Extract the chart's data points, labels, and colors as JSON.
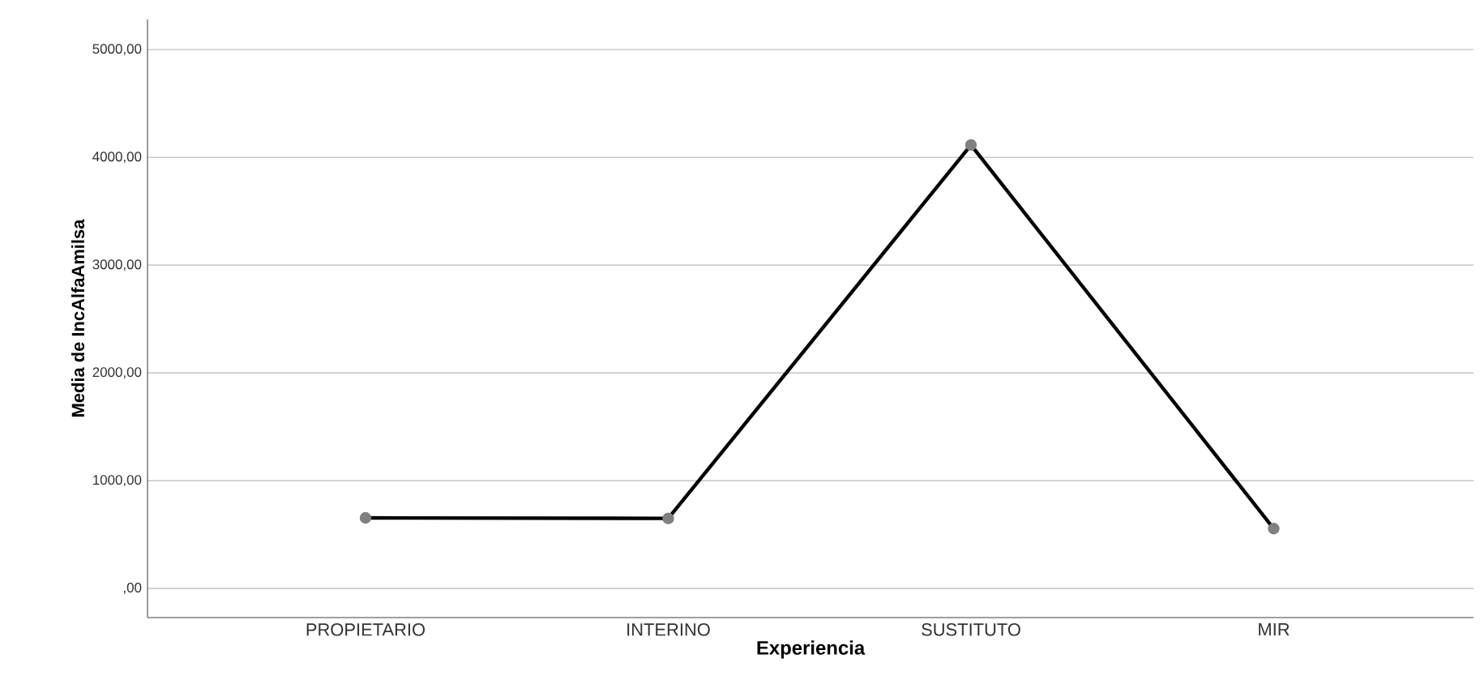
{
  "chart_data": {
    "type": "line",
    "xlabel": "Experiencia",
    "ylabel": "Media de IncAlfaAmilsa",
    "categories": [
      "PROPIETARIO",
      "INTERINO",
      "SUSTITUTO",
      "MIR"
    ],
    "series": [
      {
        "color": "#000000",
        "values": [
          655,
          650,
          4115,
          555
        ]
      }
    ],
    "marker": "circle",
    "line_style": "solid",
    "grid": "y",
    "ylim": [
      -270,
      5280
    ],
    "yticks": [
      {
        "value": 0,
        "label": ",00"
      },
      {
        "value": 1000,
        "label": "1000,00"
      },
      {
        "value": 2000,
        "label": "2000,00"
      },
      {
        "value": 3000,
        "label": "3000,00"
      },
      {
        "value": 4000,
        "label": "4000,00"
      },
      {
        "value": 5000,
        "label": "5000,00"
      }
    ]
  }
}
